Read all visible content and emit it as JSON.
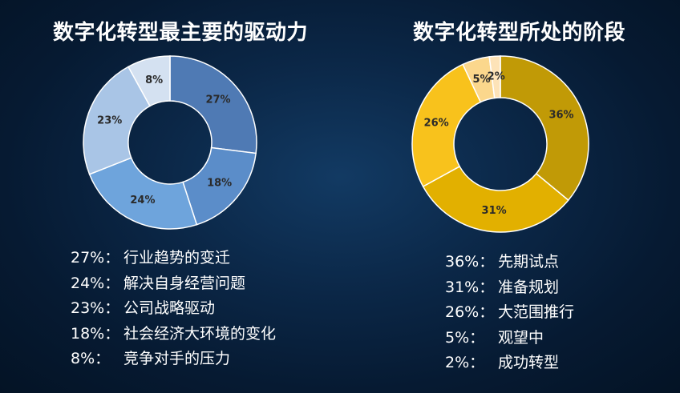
{
  "chart_data": [
    {
      "type": "pie",
      "title": "数字化转型最主要的驱动力",
      "categories": [
        "行业趋势的变迁",
        "社会经济大环境的变化",
        "解决自身经营问题",
        "公司战略驱动",
        "竞争对手的压力"
      ],
      "values": [
        27,
        18,
        24,
        23,
        8
      ],
      "labels": [
        "27%",
        "18%",
        "24%",
        "23%",
        "8%"
      ],
      "colors": [
        "#4f7ab4",
        "#5b8dc9",
        "#6ea4dc",
        "#a9c5e6",
        "#d4e1f1"
      ],
      "label_color": "#2a2a2a",
      "donut": true
    },
    {
      "type": "pie",
      "title": "数字化转型所处的阶段",
      "categories": [
        "先期试点",
        "准备规划",
        "大范围推行",
        "观望中",
        "成功转型"
      ],
      "values": [
        36,
        31,
        26,
        5,
        2
      ],
      "labels": [
        "36%",
        "31%",
        "26%",
        "5%",
        "2%"
      ],
      "colors": [
        "#c19a06",
        "#e2b000",
        "#f8c21c",
        "#fbd78c",
        "#fde3b8"
      ],
      "label_color": "#2a2a2a",
      "donut": true
    }
  ],
  "legend_left": [
    {
      "pct": "27%：",
      "text": "行业趋势的变迁"
    },
    {
      "pct": "24%：",
      "text": "解决自身经营问题"
    },
    {
      "pct": "23%：",
      "text": "公司战略驱动"
    },
    {
      "pct": "18%：",
      "text": "社会经济大环境的变化"
    },
    {
      "pct": "8%：",
      "text": "竞争对手的压力"
    }
  ],
  "legend_right": [
    {
      "pct": "36%：",
      "text": "先期试点"
    },
    {
      "pct": "31%：",
      "text": "准备规划"
    },
    {
      "pct": "26%：",
      "text": "大范围推行"
    },
    {
      "pct": "5%：",
      "text": "观望中"
    },
    {
      "pct": "2%：",
      "text": "成功转型"
    }
  ]
}
